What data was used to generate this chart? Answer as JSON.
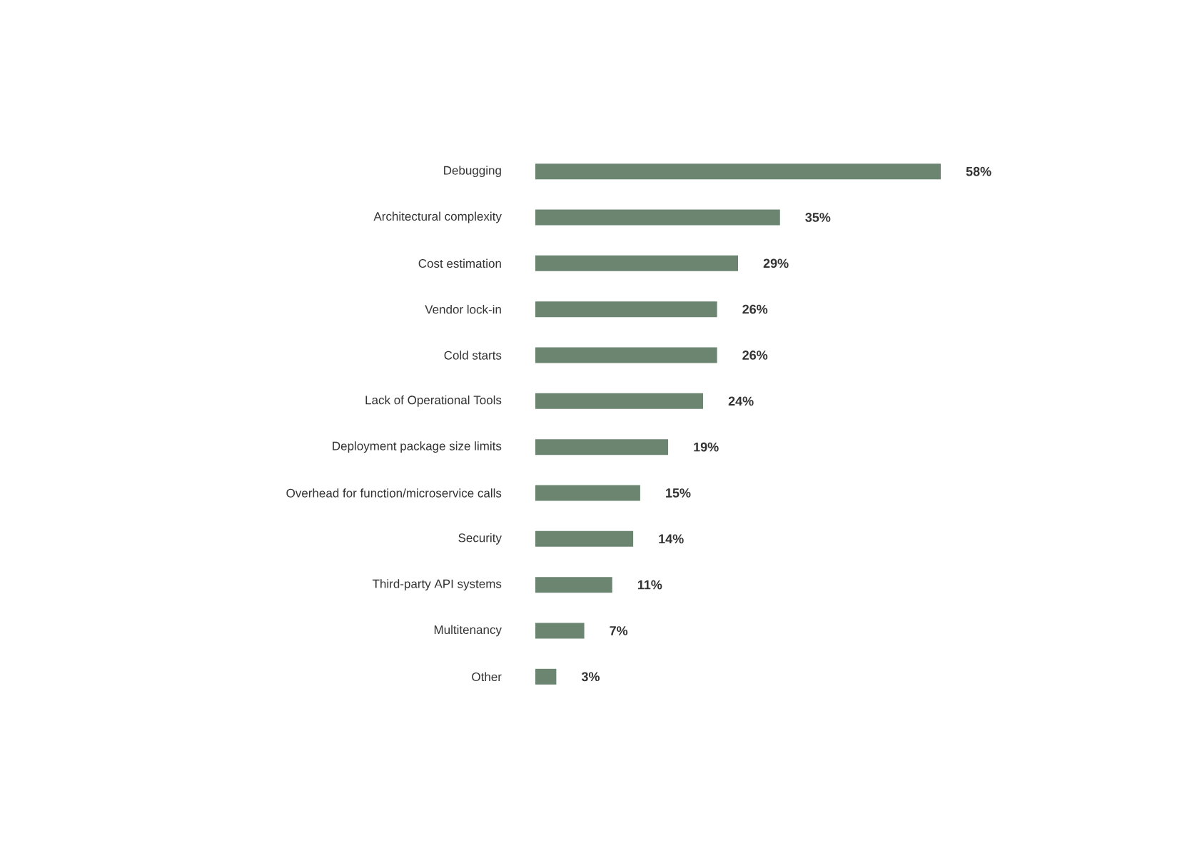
{
  "chart_data": {
    "type": "bar",
    "orientation": "horizontal",
    "categories": [
      "Debugging",
      "Architectural complexity",
      "Cost estimation",
      "Vendor lock-in",
      "Cold starts",
      "Lack of Operational Tools",
      "Deployment package size limits",
      "Overhead for function/microservice calls",
      "Security",
      "Third-party API systems",
      "Multitenancy",
      "Other"
    ],
    "values": [
      58,
      35,
      29,
      26,
      26,
      24,
      19,
      15,
      14,
      11,
      7,
      3
    ],
    "value_labels": [
      "58%",
      "35%",
      "29%",
      "26%",
      "26%",
      "24%",
      "19%",
      "15%",
      "14%",
      "11%",
      "7%",
      "3%"
    ],
    "color": "#6b8570",
    "tick_labels": "y"
  }
}
